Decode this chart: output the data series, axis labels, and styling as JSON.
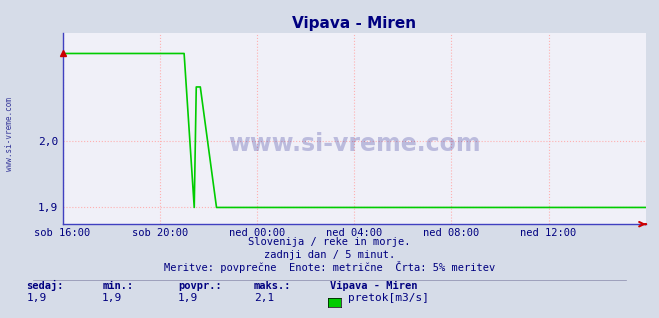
{
  "title": "Vipava - Miren",
  "title_color": "#000080",
  "bg_color": "#d6dce8",
  "plot_bg_color": "#f0f0f8",
  "grid_color": "#ffb0b0",
  "grid_style": "dotted",
  "border_color": "#4040c0",
  "line_color": "#00cc00",
  "axis_arrow_color": "#cc0000",
  "tick_label_color": "#000080",
  "watermark_color": "#000080",
  "x_tick_labels": [
    "sob 16:00",
    "sob 20:00",
    "ned 00:00",
    "ned 04:00",
    "ned 08:00",
    "ned 12:00"
  ],
  "x_tick_positions": [
    0,
    48,
    96,
    144,
    192,
    240
  ],
  "total_points": 289,
  "ylim_lo": 1.875,
  "ylim_hi": 2.16,
  "ytick_vals": [
    1.9,
    2.0
  ],
  "ytick_labels": [
    "1,9",
    "2,0"
  ],
  "baseline": 1.9,
  "peak": 2.13,
  "peak_end_idx": 60,
  "drop_end_idx": 65,
  "second_peak_start": 66,
  "second_peak_end": 68,
  "second_peak_val": 2.08,
  "second_drop_end": 76,
  "subtitle1": "Slovenija / reke in morje.",
  "subtitle2": "zadnji dan / 5 minut.",
  "subtitle3": "Meritve: povprečne  Enote: metrične  Črta: 5% meritev",
  "label_sedaj": "sedaj:",
  "label_min": "min.:",
  "label_povpr": "povpr.:",
  "label_maks": "maks.:",
  "val_sedaj": "1,9",
  "val_min": "1,9",
  "val_povpr": "1,9",
  "val_maks": "2,1",
  "legend_station": "Vipava - Miren",
  "legend_label": "pretok[m3/s]",
  "legend_color": "#00cc00",
  "watermark": "www.si-vreme.com"
}
